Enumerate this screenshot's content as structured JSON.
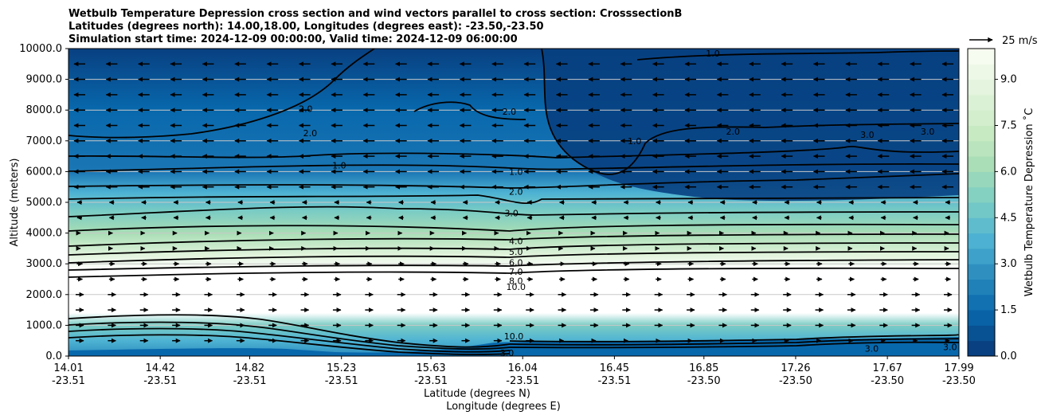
{
  "chart_data": {
    "type": "contour",
    "title_lines": [
      "Wetbulb Temperature Depression cross section and wind vectors parallel to cross section: CrosssectionB",
      "Latitudes (degrees north): 14.00,18.00, Longitudes (degrees east): -23.50,-23.50",
      "Simulation start time: 2024-12-09 00:00:00, Valid time: 2024-12-09 06:00:00"
    ],
    "ylabel": "Altitude (meters)",
    "xlabel_lat": "Latitude (degrees N)",
    "xlabel_lon": "Longitude (degrees E)",
    "ylim": [
      0,
      10000
    ],
    "y_ticks": [
      "0.0",
      "1000.0",
      "2000.0",
      "3000.0",
      "4000.0",
      "5000.0",
      "6000.0",
      "7000.0",
      "8000.0",
      "9000.0",
      "10000.0"
    ],
    "y_tick_values": [
      0,
      1000,
      2000,
      3000,
      4000,
      5000,
      6000,
      7000,
      8000,
      9000,
      10000
    ],
    "xlim": [
      14.01,
      17.99
    ],
    "x_tick_values": [
      14.01,
      14.42,
      14.82,
      15.23,
      15.63,
      16.04,
      16.45,
      16.85,
      17.26,
      17.67,
      17.99
    ],
    "x_ticks_lat": [
      "14.01",
      "14.42",
      "14.82",
      "15.23",
      "15.63",
      "16.04",
      "16.45",
      "16.85",
      "17.26",
      "17.67",
      "17.99"
    ],
    "x_ticks_lon": [
      "-23.51",
      "-23.51",
      "-23.51",
      "-23.51",
      "-23.51",
      "-23.51",
      "-23.51",
      "-23.50",
      "-23.50",
      "-23.50",
      "-23.50"
    ],
    "grid": "horizontal",
    "colorbar": {
      "label": "Wetbulb Temperature Depression $^\\circ$C",
      "label_display": "Wetbulb Temperature Depression ˚C",
      "range": [
        0,
        10
      ],
      "ticks": [
        "0.0",
        "1.5",
        "3.0",
        "4.5",
        "6.0",
        "7.5",
        "9.0"
      ],
      "tick_values": [
        0,
        1.5,
        3.0,
        4.5,
        6.0,
        7.5,
        9.0
      ],
      "colors": [
        "#084081",
        "#0868ac",
        "#2b8cbe",
        "#4eb3d3",
        "#7bccc4",
        "#a8ddb5",
        "#ccebc5",
        "#e0f3db",
        "#f7fcf0"
      ]
    },
    "quiver_key": "25 m/s",
    "contour_labels": [
      {
        "text": "1.0",
        "x": 15.22,
        "y": 6200
      },
      {
        "text": "2.0",
        "x": 15.07,
        "y": 8050
      },
      {
        "text": "2.0",
        "x": 15.09,
        "y": 7250
      },
      {
        "text": "2.0",
        "x": 15.98,
        "y": 7950
      },
      {
        "text": "1.0",
        "x": 16.89,
        "y": 9850
      },
      {
        "text": "1.0",
        "x": 16.54,
        "y": 7000
      },
      {
        "text": "2.0",
        "x": 16.98,
        "y": 7300
      },
      {
        "text": "3.0",
        "x": 17.58,
        "y": 7200
      },
      {
        "text": "3.0",
        "x": 17.85,
        "y": 7300
      },
      {
        "text": "1.0",
        "x": 16.01,
        "y": 6000
      },
      {
        "text": "2.0",
        "x": 16.01,
        "y": 5350
      },
      {
        "text": "3.0",
        "x": 15.99,
        "y": 4650
      },
      {
        "text": "4.0",
        "x": 16.01,
        "y": 3750
      },
      {
        "text": "5.0",
        "x": 16.01,
        "y": 3400
      },
      {
        "text": "6.0",
        "x": 16.01,
        "y": 3050
      },
      {
        "text": "7.0",
        "x": 16.01,
        "y": 2750
      },
      {
        "text": "8.0",
        "x": 16.01,
        "y": 2450
      },
      {
        "text": "10.0",
        "x": 16.01,
        "y": 2250
      },
      {
        "text": "10.0",
        "x": 16.0,
        "y": 650
      },
      {
        "text": "3.0",
        "x": 15.97,
        "y": 100
      },
      {
        "text": "3.0",
        "x": 17.6,
        "y": 250
      },
      {
        "text": "3.0",
        "x": 17.95,
        "y": 300
      }
    ]
  }
}
